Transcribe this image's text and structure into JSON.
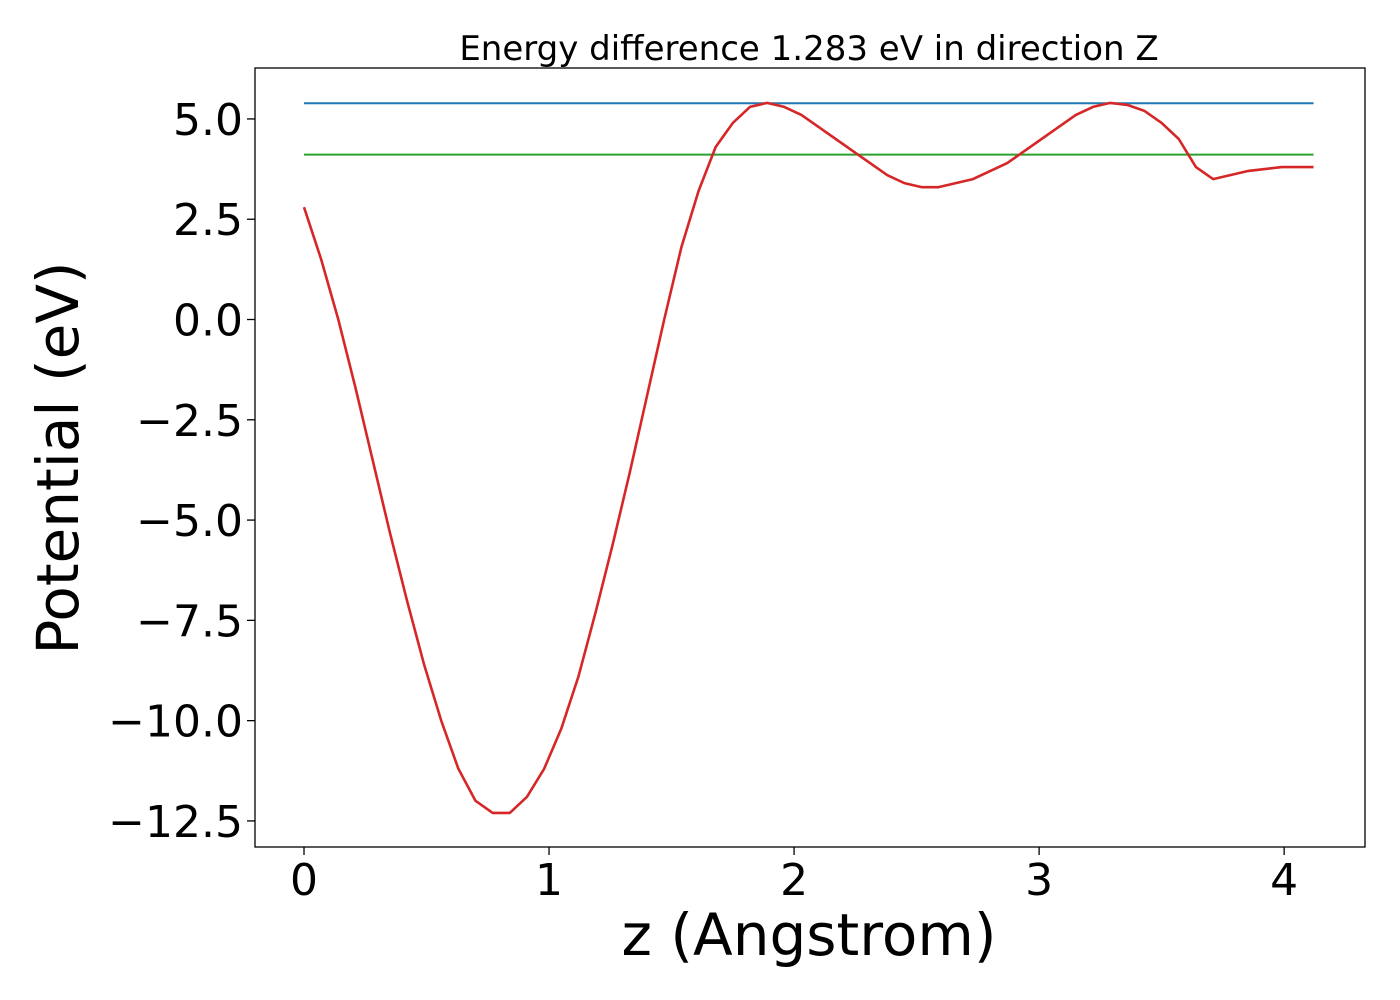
{
  "chart_data": {
    "type": "line",
    "title": "Energy difference 1.283 eV in direction Z",
    "xlabel": "z (Angstrom)",
    "ylabel": "Potential (eV)",
    "xlim": [
      -0.2,
      4.33
    ],
    "ylim": [
      -13.15,
      6.27
    ],
    "grid": false,
    "x_ticks": [
      0,
      1,
      2,
      3,
      4
    ],
    "x_tick_labels": [
      "0",
      "1",
      "2",
      "3",
      "4"
    ],
    "y_ticks": [
      5.0,
      2.5,
      0.0,
      -2.5,
      -5.0,
      -7.5,
      -10.0,
      -12.5
    ],
    "y_tick_labels": [
      "5.0",
      "2.5",
      "0.0",
      "−2.5",
      "−5.0",
      "−7.5",
      "−10.0",
      "−12.5"
    ],
    "series": [
      {
        "color": "#d62728",
        "x": [
          0.0,
          0.07,
          0.14,
          0.21,
          0.28,
          0.35,
          0.42,
          0.49,
          0.56,
          0.63,
          0.7,
          0.77,
          0.84,
          0.91,
          0.98,
          1.05,
          1.12,
          1.19,
          1.26,
          1.33,
          1.4,
          1.47,
          1.54,
          1.61,
          1.68,
          1.75,
          1.82,
          1.89,
          1.96,
          2.03,
          2.1,
          2.17,
          2.24,
          2.31,
          2.38,
          2.45,
          2.52,
          2.59,
          2.66,
          2.73,
          2.8,
          2.87,
          2.94,
          3.01,
          3.08,
          3.15,
          3.22,
          3.29,
          3.36,
          3.43,
          3.5,
          3.57,
          3.64,
          3.71,
          3.78,
          3.85,
          3.92,
          3.99,
          4.06,
          4.12
        ],
        "y": [
          2.8,
          1.5,
          0.0,
          -1.7,
          -3.5,
          -5.3,
          -7.0,
          -8.6,
          -10.0,
          -11.2,
          -12.0,
          -12.3,
          -12.3,
          -11.9,
          -11.2,
          -10.2,
          -8.9,
          -7.3,
          -5.6,
          -3.8,
          -1.9,
          0.0,
          1.8,
          3.2,
          4.3,
          4.9,
          5.3,
          5.4,
          5.3,
          5.1,
          4.8,
          4.5,
          4.2,
          3.9,
          3.6,
          3.4,
          3.3,
          3.3,
          3.4,
          3.5,
          3.7,
          3.9,
          4.2,
          4.5,
          4.8,
          5.1,
          5.3,
          5.4,
          5.35,
          5.2,
          4.9,
          4.5,
          3.8,
          3.5,
          3.6,
          3.7,
          3.75,
          3.8,
          3.8,
          3.8
        ]
      }
    ],
    "hlines": [
      {
        "color": "#1f77b4",
        "y": 5.39,
        "x": [
          0.0,
          4.12
        ]
      },
      {
        "color": "#2ca02c",
        "y": 4.11,
        "x": [
          0.0,
          4.12
        ]
      }
    ]
  }
}
